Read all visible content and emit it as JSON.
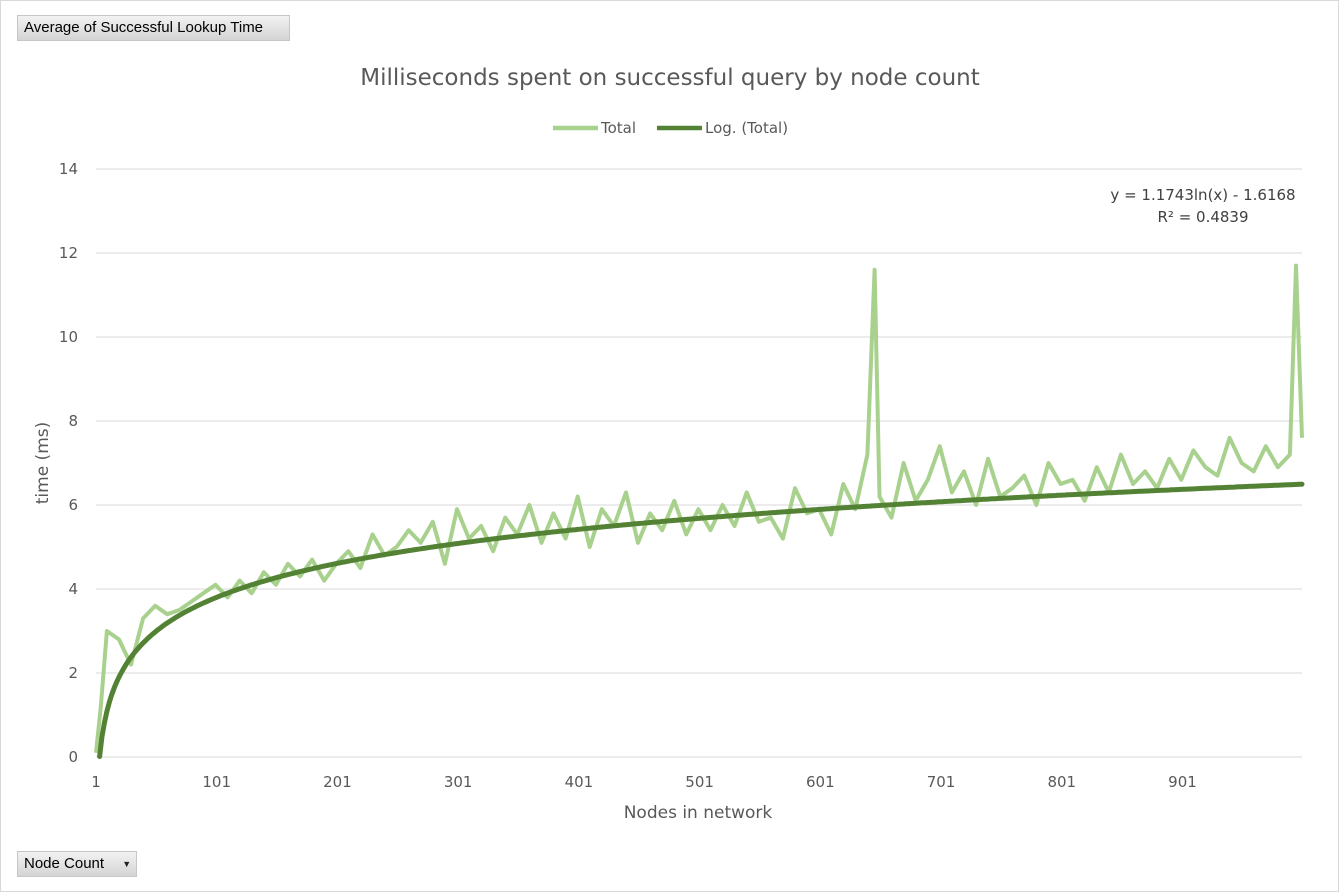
{
  "pivot": {
    "value_field": "Average of Successful Lookup Time",
    "axis_field": "Node Count",
    "axis_field_icon": "dropdown-arrow-icon"
  },
  "chart_data": {
    "type": "line",
    "title": "Milliseconds spent on successful query by node count",
    "xlabel": "Nodes in network",
    "ylabel": "time (ms)",
    "x_range": [
      1,
      1000
    ],
    "x_ticks": [
      "1",
      "101",
      "201",
      "301",
      "401",
      "501",
      "601",
      "701",
      "801",
      "901"
    ],
    "ylim": [
      0,
      14
    ],
    "y_ticks": [
      "0",
      "2",
      "4",
      "6",
      "8",
      "10",
      "12",
      "14"
    ],
    "grid": "horizontal",
    "legend_position": "top",
    "series": [
      {
        "name": "Total",
        "color": "#a9d18e",
        "x": [
          1,
          5,
          10,
          20,
          30,
          40,
          50,
          60,
          70,
          80,
          90,
          100,
          110,
          120,
          130,
          140,
          150,
          160,
          170,
          180,
          190,
          200,
          210,
          220,
          230,
          240,
          250,
          260,
          270,
          280,
          290,
          300,
          310,
          320,
          330,
          340,
          350,
          360,
          370,
          380,
          390,
          400,
          410,
          420,
          430,
          440,
          450,
          460,
          470,
          480,
          490,
          500,
          510,
          520,
          530,
          540,
          550,
          560,
          570,
          580,
          590,
          600,
          610,
          620,
          630,
          640,
          646,
          650,
          660,
          670,
          680,
          690,
          700,
          710,
          720,
          730,
          740,
          750,
          760,
          770,
          780,
          790,
          800,
          810,
          820,
          830,
          840,
          850,
          860,
          870,
          880,
          890,
          900,
          910,
          920,
          930,
          940,
          950,
          960,
          970,
          980,
          990,
          995,
          1000
        ],
        "values": [
          0.1,
          1.2,
          3.0,
          2.8,
          2.2,
          3.3,
          3.6,
          3.4,
          3.5,
          3.7,
          3.9,
          4.1,
          3.8,
          4.2,
          3.9,
          4.4,
          4.1,
          4.6,
          4.3,
          4.7,
          4.2,
          4.6,
          4.9,
          4.5,
          5.3,
          4.8,
          5.0,
          5.4,
          5.1,
          5.6,
          4.6,
          5.9,
          5.2,
          5.5,
          4.9,
          5.7,
          5.3,
          6.0,
          5.1,
          5.8,
          5.2,
          6.2,
          5.0,
          5.9,
          5.5,
          6.3,
          5.1,
          5.8,
          5.4,
          6.1,
          5.3,
          5.9,
          5.4,
          6.0,
          5.5,
          6.3,
          5.6,
          5.7,
          5.2,
          6.4,
          5.8,
          5.9,
          5.3,
          6.5,
          5.9,
          7.2,
          11.6,
          6.2,
          5.7,
          7.0,
          6.1,
          6.6,
          7.4,
          6.3,
          6.8,
          6.0,
          7.1,
          6.2,
          6.4,
          6.7,
          6.0,
          7.0,
          6.5,
          6.6,
          6.1,
          6.9,
          6.3,
          7.2,
          6.5,
          6.8,
          6.4,
          7.1,
          6.6,
          7.3,
          6.9,
          6.7,
          7.6,
          7.0,
          6.8,
          7.4,
          6.9,
          7.2,
          11.7,
          7.6
        ]
      },
      {
        "name": "Log. (Total)",
        "color": "#548235",
        "trendline": "logarithmic",
        "equation": "y = 1.1743ln(x) - 1.6168",
        "r_squared": "R² = 0.4839",
        "coefficients": {
          "a": 1.1743,
          "b": -1.6168
        }
      }
    ]
  }
}
